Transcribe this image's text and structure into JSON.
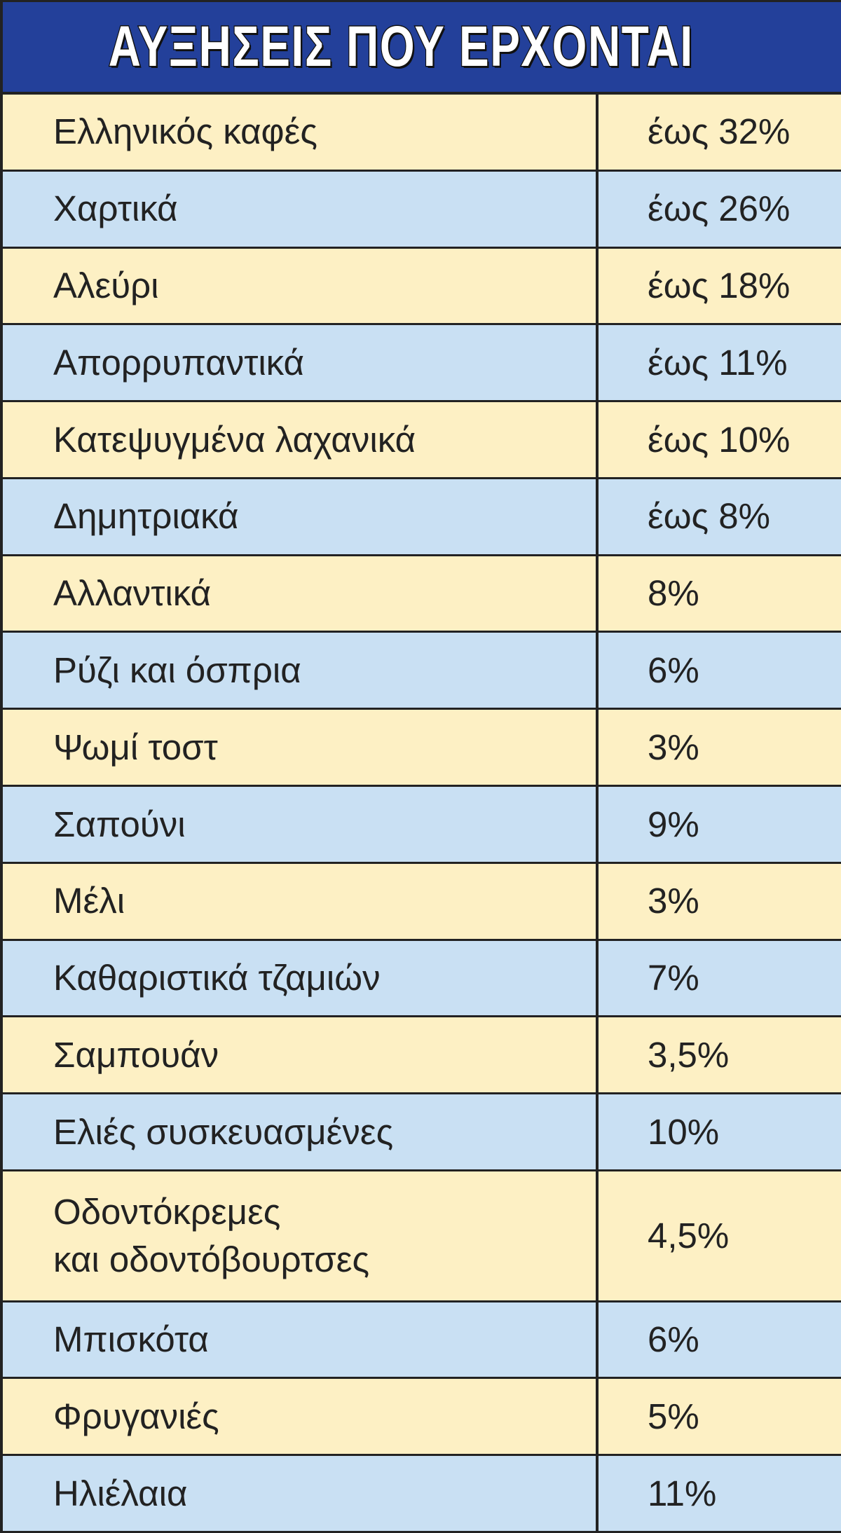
{
  "header": {
    "title": "ΑΥΞΗΣΕΙΣ ΠΟΥ ΕΡΧΟΝΤΑΙ"
  },
  "table": {
    "rows": [
      [
        "Ελληνικός καφές",
        "έως 32%"
      ],
      [
        "Χαρτικά",
        "έως 26%"
      ],
      [
        "Αλεύρι",
        "έως 18%"
      ],
      [
        "Απορρυπαντικά",
        "έως 11%"
      ],
      [
        "Κατεψυγμένα λαχανικά",
        "έως 10%"
      ],
      [
        "Δημητριακά",
        "έως 8%"
      ],
      [
        "Αλλαντικά",
        "8%"
      ],
      [
        "Ρύζι και όσπρια",
        "6%"
      ],
      [
        "Ψωμί τοστ",
        "3%"
      ],
      [
        "Σαπούνι",
        "9%"
      ],
      [
        "Μέλι",
        "3%"
      ],
      [
        "Καθαριστικά τζαμιών",
        "7%"
      ],
      [
        "Σαμπουάν",
        "3,5%"
      ],
      [
        "Ελιές συσκευασμένες",
        "10%"
      ],
      [
        "Οδοντόκρεμες\nκαι οδοντόβουρτσες",
        "4,5%"
      ],
      [
        "Μπισκότα",
        "6%"
      ],
      [
        "Φρυγανιές",
        "5%"
      ],
      [
        "Ηλιέλαια",
        "11%"
      ]
    ]
  }
}
